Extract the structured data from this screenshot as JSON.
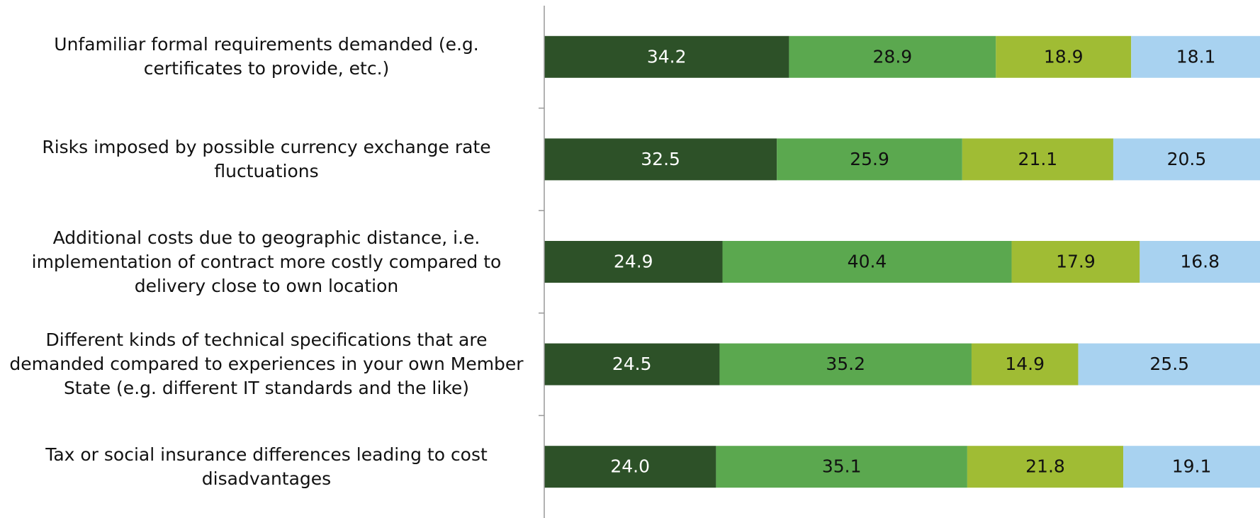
{
  "chart_data": {
    "type": "stacked-barh",
    "categories": [
      "Unfamiliar formal requirements demanded (e.g. certificates to provide, etc.)",
      "Risks imposed by possible currency exchange rate fluctuations",
      "Additional costs due to geographic distance, i.e. implementation of contract more costly compared to delivery close to own location",
      "Different kinds of technical specifications that are demanded compared to experiences in your own Member State (e.g. different IT standards and the like)",
      "Tax or social insurance differences leading to cost disadvantages"
    ],
    "series": [
      {
        "color": "#2d5128",
        "label_color": "#ffffff",
        "values": [
          34.2,
          32.5,
          24.9,
          24.5,
          24.0
        ],
        "value_labels": [
          "34.2",
          "32.5",
          "24.9",
          "24.5",
          "24.0"
        ]
      },
      {
        "color": "#5ba84f",
        "label_color": "#111111",
        "values": [
          28.9,
          25.9,
          40.4,
          35.2,
          35.1
        ]
      },
      {
        "color": "#a0bc34",
        "label_color": "#111111",
        "values": [
          18.9,
          21.1,
          17.9,
          14.9,
          21.8
        ]
      },
      {
        "color": "#a8d2f0",
        "label_color": "#111111",
        "values": [
          18.1,
          20.5,
          16.8,
          25.5,
          19.1
        ]
      }
    ],
    "xlim": [
      0,
      100
    ]
  }
}
